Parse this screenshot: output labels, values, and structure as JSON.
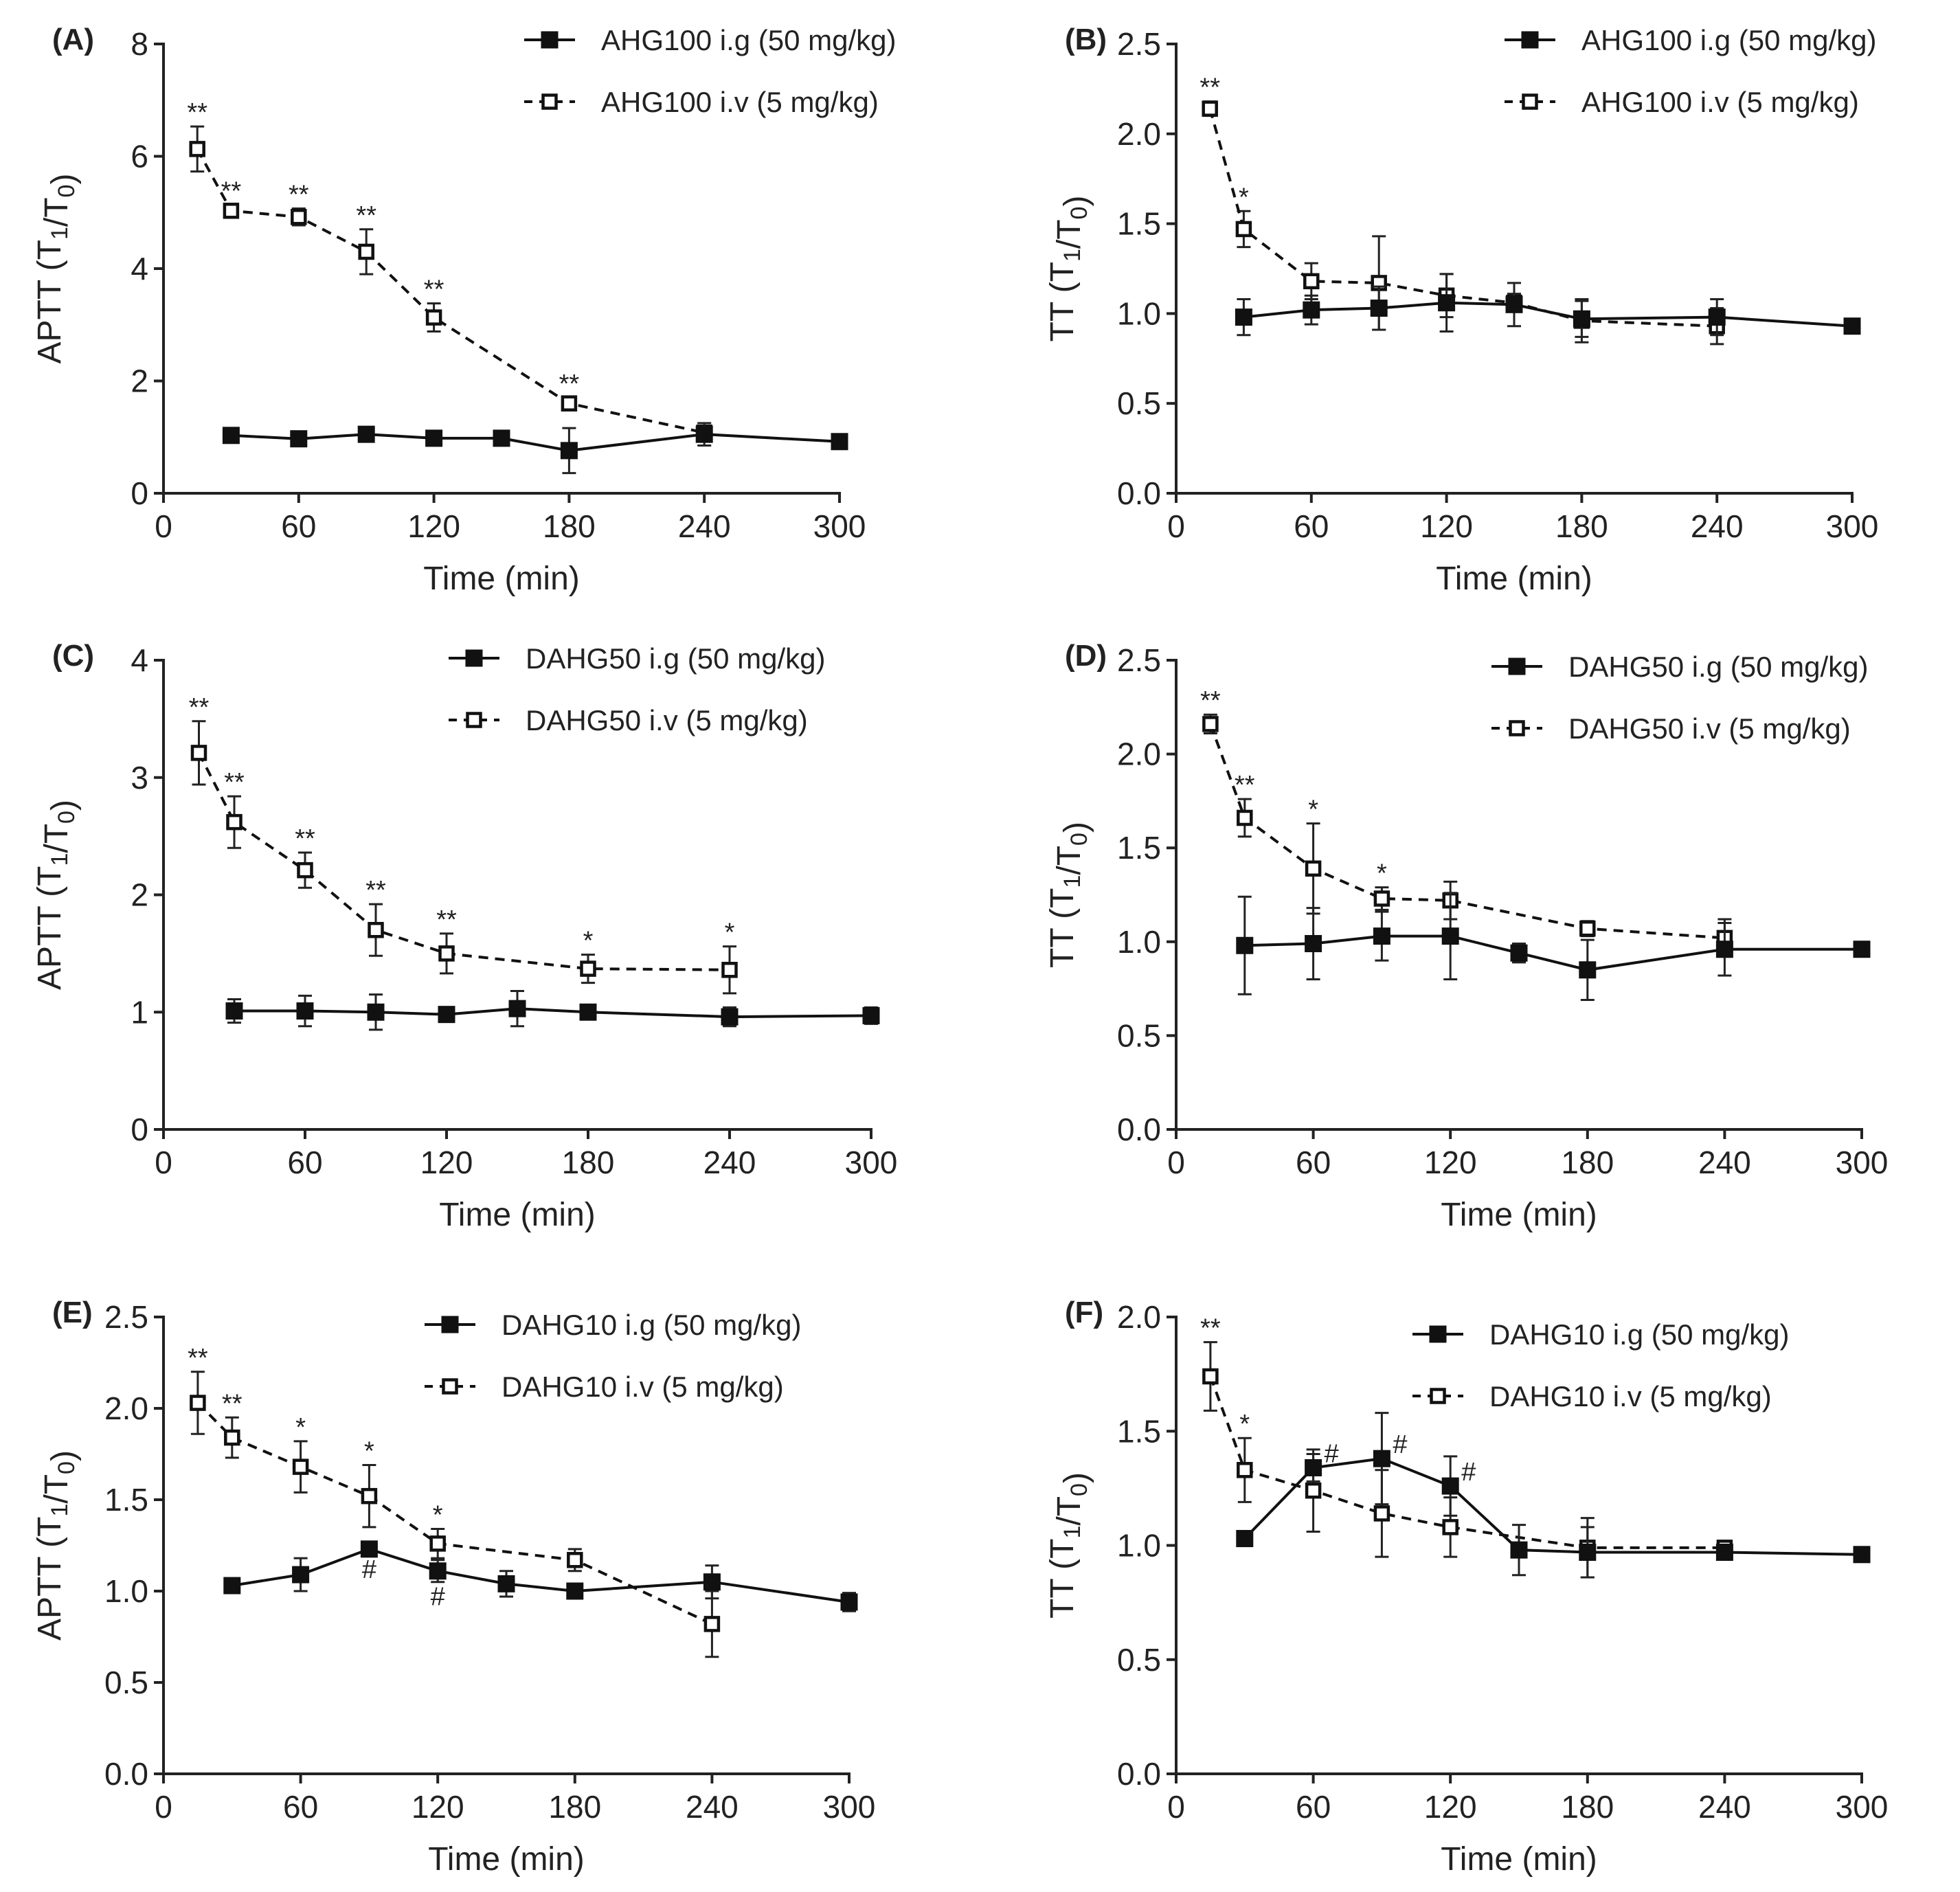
{
  "chart_data": [
    {
      "type": "line",
      "panel_label": "(A)",
      "xlabel": "Time (min)",
      "ylabel_main": "APTT (T",
      "ylabel_sub1": "1",
      "ylabel_mid": "/T",
      "ylabel_sub2": "0",
      "ylabel_end": ")",
      "xlim": [
        0,
        300
      ],
      "ylim": [
        0,
        8
      ],
      "xticks": [
        0,
        60,
        120,
        180,
        240,
        300
      ],
      "yticks": [
        0,
        2,
        4,
        6,
        8
      ],
      "xtick_labels": [
        "0",
        "60",
        "120",
        "180",
        "240",
        "300"
      ],
      "ytick_labels": [
        "0",
        "2",
        "4",
        "6",
        "8"
      ],
      "series": [
        {
          "name": "AHG100 i.g (50 mg/kg)",
          "style": "solid",
          "marker": "filled-square",
          "x": [
            30,
            60,
            90,
            120,
            150,
            180,
            240,
            300
          ],
          "y": [
            1.03,
            0.97,
            1.05,
            0.98,
            0.98,
            0.76,
            1.05,
            0.92
          ],
          "err": [
            0.05,
            0.05,
            0.05,
            0.05,
            0.05,
            0.4,
            0.2,
            0.05
          ],
          "labels": [
            "",
            "",
            "",
            "",
            "",
            "",
            "",
            ""
          ]
        },
        {
          "name": "AHG100 i.v (5 mg/kg)",
          "style": "dashed",
          "marker": "open-square",
          "x": [
            15,
            30,
            60,
            90,
            120,
            180,
            240
          ],
          "y": [
            6.13,
            5.03,
            4.92,
            4.3,
            3.13,
            1.6,
            1.08
          ],
          "err": [
            0.4,
            0.1,
            0.15,
            0.4,
            0.25,
            0.1,
            0.1
          ],
          "labels": [
            "**",
            "**",
            "**",
            "**",
            "**",
            "**",
            ""
          ]
        }
      ]
    },
    {
      "type": "line",
      "panel_label": "(B)",
      "xlabel": "Time (min)",
      "ylabel_main": "TT (T",
      "ylabel_sub1": "1",
      "ylabel_mid": "/T",
      "ylabel_sub2": "0",
      "ylabel_end": ")",
      "xlim": [
        0,
        300
      ],
      "ylim": [
        0,
        2.5
      ],
      "xticks": [
        0,
        60,
        120,
        180,
        240,
        300
      ],
      "yticks": [
        0,
        0.5,
        1,
        1.5,
        2,
        2.5
      ],
      "xtick_labels": [
        "0",
        "60",
        "120",
        "180",
        "240",
        "300"
      ],
      "ytick_labels": [
        "0.0",
        "0.5",
        "1.0",
        "1.5",
        "2.0",
        "2.5"
      ],
      "series": [
        {
          "name": "AHG100 i.g (50 mg/kg)",
          "style": "solid",
          "marker": "filled-square",
          "x": [
            30,
            60,
            90,
            120,
            150,
            180,
            240,
            300
          ],
          "y": [
            0.98,
            1.02,
            1.03,
            1.06,
            1.05,
            0.97,
            0.98,
            0.93
          ],
          "err": [
            0.1,
            0.08,
            0.12,
            0.16,
            0.12,
            0.1,
            0.1,
            0.02
          ],
          "labels": [
            "",
            "",
            "",
            "",
            "",
            "",
            "",
            ""
          ]
        },
        {
          "name": "AHG100 i.v (5 mg/kg)",
          "style": "dashed",
          "marker": "open-square",
          "x": [
            15,
            30,
            60,
            90,
            120,
            150,
            180,
            240
          ],
          "y": [
            2.14,
            1.47,
            1.18,
            1.17,
            1.1,
            1.06,
            0.96,
            0.93
          ],
          "err": [
            0.04,
            0.1,
            0.1,
            0.26,
            0.12,
            0.05,
            0.12,
            0.1
          ],
          "labels": [
            "**",
            "*",
            "",
            "",
            "",
            "",
            "",
            ""
          ]
        }
      ]
    },
    {
      "type": "line",
      "panel_label": "(C)",
      "xlabel": "Time (min)",
      "ylabel_main": "APTT (T",
      "ylabel_sub1": "1",
      "ylabel_mid": "/T",
      "ylabel_sub2": "0",
      "ylabel_end": ")",
      "xlim": [
        0,
        300
      ],
      "ylim": [
        0,
        4
      ],
      "xticks": [
        0,
        60,
        120,
        180,
        240,
        300
      ],
      "yticks": [
        0,
        1,
        2,
        3,
        4
      ],
      "xtick_labels": [
        "0",
        "60",
        "120",
        "180",
        "240",
        "300"
      ],
      "ytick_labels": [
        "0",
        "1",
        "2",
        "3",
        "4"
      ],
      "series": [
        {
          "name": "DAHG50 i.g (50 mg/kg)",
          "style": "solid",
          "marker": "filled-square",
          "x": [
            30,
            60,
            90,
            120,
            150,
            180,
            240,
            300
          ],
          "y": [
            1.01,
            1.01,
            1.0,
            0.98,
            1.03,
            1.0,
            0.96,
            0.97
          ],
          "err": [
            0.1,
            0.13,
            0.15,
            0.05,
            0.15,
            0.05,
            0.08,
            0.07
          ],
          "labels": [
            "",
            "",
            "",
            "",
            "",
            "",
            "",
            ""
          ]
        },
        {
          "name": "DAHG50 i.v (5 mg/kg)",
          "style": "dashed",
          "marker": "open-square",
          "x": [
            15,
            30,
            60,
            90,
            120,
            180,
            240
          ],
          "y": [
            3.21,
            2.62,
            2.21,
            1.7,
            1.5,
            1.37,
            1.36
          ],
          "err": [
            0.27,
            0.22,
            0.15,
            0.22,
            0.17,
            0.12,
            0.2
          ],
          "labels": [
            "**",
            "**",
            "**",
            "**",
            "**",
            "*",
            "*"
          ]
        }
      ]
    },
    {
      "type": "line",
      "panel_label": "(D)",
      "xlabel": "Time (min)",
      "ylabel_main": "TT (T",
      "ylabel_sub1": "1",
      "ylabel_mid": "/T",
      "ylabel_sub2": "0",
      "ylabel_end": ")",
      "xlim": [
        0,
        300
      ],
      "ylim": [
        0,
        2.5
      ],
      "xticks": [
        0,
        60,
        120,
        180,
        240,
        300
      ],
      "yticks": [
        0,
        0.5,
        1,
        1.5,
        2,
        2.5
      ],
      "xtick_labels": [
        "0",
        "60",
        "120",
        "180",
        "240",
        "300"
      ],
      "ytick_labels": [
        "0.0",
        "0.5",
        "1.0",
        "1.5",
        "2.0",
        "2.5"
      ],
      "series": [
        {
          "name": "DAHG50 i.g (50 mg/kg)",
          "style": "solid",
          "marker": "filled-square",
          "x": [
            30,
            60,
            90,
            120,
            150,
            180,
            240,
            300
          ],
          "y": [
            0.98,
            0.99,
            1.03,
            1.03,
            0.94,
            0.85,
            0.96,
            0.96
          ],
          "err": [
            0.26,
            0.19,
            0.13,
            0.23,
            0.05,
            0.16,
            0.14,
            0.03
          ],
          "labels": [
            "",
            "",
            "",
            "",
            "",
            "",
            "",
            ""
          ]
        },
        {
          "name": "DAHG50 i.v (5 mg/kg)",
          "style": "dashed",
          "marker": "open-square",
          "x": [
            15,
            30,
            60,
            90,
            120,
            180,
            240
          ],
          "y": [
            2.16,
            1.66,
            1.39,
            1.23,
            1.22,
            1.07,
            1.02
          ],
          "err": [
            0.05,
            0.1,
            0.24,
            0.06,
            0.1,
            0.04,
            0.1
          ],
          "labels": [
            "**",
            "**",
            "*",
            "*",
            "",
            "",
            ""
          ]
        }
      ]
    },
    {
      "type": "line",
      "panel_label": "(E)",
      "xlabel": "Time (min)",
      "ylabel_main": "APTT (T",
      "ylabel_sub1": "1",
      "ylabel_mid": "/T",
      "ylabel_sub2": "0",
      "ylabel_end": ")",
      "xlim": [
        0,
        300
      ],
      "ylim": [
        0,
        2.5
      ],
      "xticks": [
        0,
        60,
        120,
        180,
        240,
        300
      ],
      "yticks": [
        0,
        0.5,
        1,
        1.5,
        2,
        2.5
      ],
      "xtick_labels": [
        "0",
        "60",
        "120",
        "180",
        "240",
        "300"
      ],
      "ytick_labels": [
        "0.0",
        "0.5",
        "1.0",
        "1.5",
        "2.0",
        "2.5"
      ],
      "series": [
        {
          "name": "DAHG10 i.g (50 mg/kg)",
          "style": "solid",
          "marker": "filled-square",
          "x": [
            30,
            60,
            90,
            120,
            150,
            180,
            240,
            300
          ],
          "y": [
            1.03,
            1.09,
            1.23,
            1.11,
            1.04,
            1.0,
            1.05,
            0.94
          ],
          "err": [
            0.03,
            0.09,
            0.03,
            0.06,
            0.07,
            0.02,
            0.09,
            0.05
          ],
          "labels": [
            "",
            "",
            "#",
            "#",
            "",
            "",
            "",
            ""
          ],
          "label_pos": "below"
        },
        {
          "name": "DAHG10 i.v (5 mg/kg)",
          "style": "dashed",
          "marker": "open-square",
          "x": [
            15,
            30,
            60,
            90,
            120,
            180,
            240
          ],
          "y": [
            2.03,
            1.84,
            1.68,
            1.52,
            1.26,
            1.17,
            0.82
          ],
          "err": [
            0.17,
            0.11,
            0.14,
            0.17,
            0.08,
            0.06,
            0.18
          ],
          "labels": [
            "**",
            "**",
            "*",
            "*",
            "*",
            "",
            ""
          ]
        }
      ]
    },
    {
      "type": "line",
      "panel_label": "(F)",
      "xlabel": "Time (min)",
      "ylabel_main": "TT (T",
      "ylabel_sub1": "1",
      "ylabel_mid": "/T",
      "ylabel_sub2": "0",
      "ylabel_end": ")",
      "xlim": [
        0,
        300
      ],
      "ylim": [
        0,
        2.0
      ],
      "xticks": [
        0,
        60,
        120,
        180,
        240,
        300
      ],
      "yticks": [
        0,
        0.5,
        1,
        1.5,
        2
      ],
      "xtick_labels": [
        "0",
        "60",
        "120",
        "180",
        "240",
        "300"
      ],
      "ytick_labels": [
        "0.0",
        "0.5",
        "1.0",
        "1.5",
        "2.0"
      ],
      "series": [
        {
          "name": "DAHG10 i.g (50 mg/kg)",
          "style": "solid",
          "marker": "filled-square",
          "x": [
            30,
            60,
            90,
            120,
            150,
            180,
            240,
            300
          ],
          "y": [
            1.03,
            1.34,
            1.38,
            1.26,
            0.98,
            0.97,
            0.97,
            0.96
          ],
          "err": [
            0.03,
            0.06,
            0.2,
            0.13,
            0.11,
            0.11,
            0.02,
            0.02
          ],
          "labels": [
            "",
            "#",
            "#",
            "#",
            "",
            "",
            "",
            ""
          ],
          "label_pos": "right"
        },
        {
          "name": "DAHG10 i.v (5 mg/kg)",
          "style": "dashed",
          "marker": "open-square",
          "x": [
            15,
            30,
            60,
            90,
            120,
            180,
            240
          ],
          "y": [
            1.74,
            1.33,
            1.24,
            1.14,
            1.08,
            0.99,
            0.99
          ],
          "err": [
            0.15,
            0.14,
            0.18,
            0.19,
            0.13,
            0.13,
            0.02
          ],
          "labels": [
            "**",
            "*",
            "",
            "",
            "",
            "",
            ""
          ]
        }
      ]
    }
  ]
}
